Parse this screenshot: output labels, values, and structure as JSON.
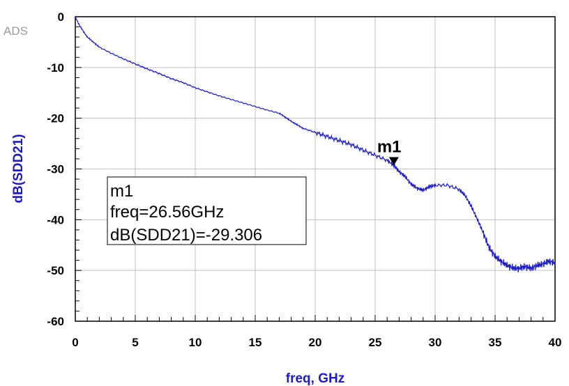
{
  "watermark": "ADS",
  "chart_data": {
    "type": "line",
    "xlabel": "freq, GHz",
    "ylabel": "dB(SDD21)",
    "xlim": [
      0,
      40
    ],
    "ylim": [
      -60,
      0
    ],
    "xticks": [
      0,
      5,
      10,
      15,
      20,
      25,
      30,
      35,
      40
    ],
    "yticks": [
      0,
      -10,
      -20,
      -30,
      -40,
      -50,
      -60
    ],
    "xtick_labels": [
      "0",
      "5",
      "10",
      "15",
      "20",
      "25",
      "30",
      "35",
      "40"
    ],
    "ytick_labels": [
      "0",
      "-10",
      "-20",
      "-30",
      "-40",
      "-50",
      "-60"
    ],
    "grid": true,
    "series_color": "#1a1acc",
    "series": [
      {
        "x": [
          0,
          0.3,
          0.7,
          1,
          1.5,
          2,
          3,
          4,
          5,
          6,
          7,
          8,
          9,
          10,
          11,
          12,
          13,
          14,
          15,
          16,
          17,
          17.5,
          18,
          18.5,
          19,
          20,
          21,
          22,
          23,
          24,
          25,
          26,
          26.56,
          27,
          27.5,
          28,
          28.5,
          29,
          29.5,
          30,
          31,
          32,
          32.5,
          33,
          33.5,
          34,
          34.5,
          35,
          35.5,
          36,
          36.5,
          37,
          37.5,
          38,
          38.5,
          39,
          39.5,
          40
        ],
        "y": [
          0,
          -1.5,
          -3,
          -4,
          -5,
          -6,
          -7.2,
          -8.3,
          -9.3,
          -10.3,
          -11.2,
          -12.2,
          -13,
          -14,
          -14.8,
          -15.6,
          -16.3,
          -17,
          -17.7,
          -18.4,
          -19,
          -19.8,
          -20.6,
          -21.3,
          -22,
          -22.8,
          -23.6,
          -24.4,
          -25.2,
          -26.3,
          -27.3,
          -28.3,
          -29.306,
          -30.5,
          -31.5,
          -33,
          -33.8,
          -34.2,
          -33.5,
          -33.2,
          -33.2,
          -34,
          -35.2,
          -37.3,
          -39.8,
          -42.5,
          -45.5,
          -47.2,
          -48.2,
          -49,
          -49.5,
          -49.6,
          -49.2,
          -49.6,
          -49,
          -48.7,
          -48.2,
          -48.5
        ]
      }
    ],
    "marker": {
      "name": "m1",
      "x": 26.56,
      "y": -29.306,
      "readout_lines": [
        "m1",
        "freq=26.56GHz",
        "dB(SDD21)=-29.306"
      ]
    }
  }
}
